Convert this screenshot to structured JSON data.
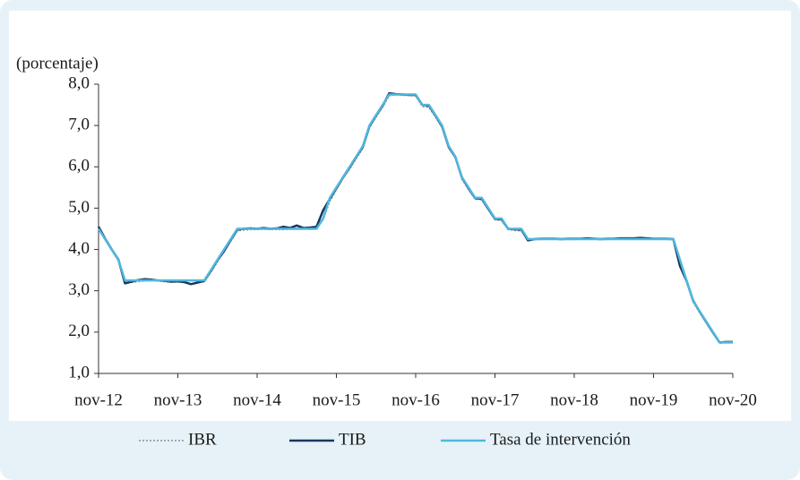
{
  "chart_data": {
    "type": "line",
    "ylabel": "(porcentaje)",
    "categories": [
      "nov-12",
      null,
      null,
      null,
      null,
      null,
      null,
      null,
      null,
      null,
      null,
      null,
      "nov-13",
      null,
      null,
      null,
      null,
      null,
      null,
      null,
      null,
      null,
      null,
      null,
      "nov-14",
      null,
      null,
      null,
      null,
      null,
      null,
      null,
      null,
      null,
      null,
      null,
      "nov-15",
      null,
      null,
      null,
      null,
      null,
      null,
      null,
      null,
      null,
      null,
      null,
      "nov-16",
      null,
      null,
      null,
      null,
      null,
      null,
      null,
      null,
      null,
      null,
      null,
      "nov-17",
      null,
      null,
      null,
      null,
      null,
      null,
      null,
      null,
      null,
      null,
      null,
      "nov-18",
      null,
      null,
      null,
      null,
      null,
      null,
      null,
      null,
      null,
      null,
      null,
      "nov-19",
      null,
      null,
      null,
      null,
      null,
      null,
      null,
      null,
      null,
      null,
      null,
      "nov-20"
    ],
    "series": [
      {
        "name": "IBR",
        "color": "#8a8f94",
        "dash": "2 2",
        "width": 1.5,
        "values": [
          4.52,
          4.23,
          3.98,
          3.72,
          3.18,
          3.2,
          3.22,
          3.24,
          3.25,
          3.24,
          3.22,
          3.21,
          3.21,
          3.2,
          3.17,
          3.19,
          3.22,
          3.45,
          3.7,
          3.95,
          4.2,
          4.45,
          4.47,
          4.48,
          4.48,
          4.49,
          4.48,
          4.48,
          4.48,
          4.49,
          4.49,
          4.5,
          4.51,
          4.52,
          4.72,
          5.16,
          5.45,
          5.72,
          5.95,
          6.2,
          6.45,
          6.95,
          7.2,
          7.45,
          7.72,
          7.74,
          7.73,
          7.73,
          7.72,
          7.46,
          7.44,
          7.2,
          6.95,
          6.45,
          6.22,
          5.7,
          5.45,
          5.22,
          5.2,
          4.96,
          4.72,
          4.7,
          4.48,
          4.46,
          4.45,
          4.22,
          4.24,
          4.24,
          4.25,
          4.25,
          4.24,
          4.24,
          4.24,
          4.25,
          4.25,
          4.25,
          4.24,
          4.24,
          4.25,
          4.25,
          4.25,
          4.26,
          4.26,
          4.25,
          4.25,
          4.25,
          4.24,
          4.24,
          3.7,
          3.22,
          2.72,
          2.47,
          2.22,
          1.98,
          1.73,
          1.74,
          1.74
        ]
      },
      {
        "name": "TIB",
        "color": "#17375e",
        "width": 2.5,
        "values": [
          4.55,
          4.26,
          4.0,
          3.76,
          3.18,
          3.22,
          3.26,
          3.28,
          3.27,
          3.25,
          3.24,
          3.22,
          3.23,
          3.21,
          3.16,
          3.2,
          3.24,
          3.48,
          3.74,
          3.96,
          4.23,
          4.48,
          4.5,
          4.51,
          4.5,
          4.52,
          4.5,
          4.51,
          4.55,
          4.52,
          4.58,
          4.52,
          4.53,
          4.55,
          4.95,
          5.22,
          5.48,
          5.74,
          5.98,
          6.24,
          6.48,
          6.98,
          7.24,
          7.48,
          7.78,
          7.76,
          7.75,
          7.74,
          7.74,
          7.5,
          7.48,
          7.24,
          6.98,
          6.48,
          6.24,
          5.74,
          5.48,
          5.24,
          5.23,
          4.98,
          4.74,
          4.73,
          4.5,
          4.49,
          4.48,
          4.22,
          4.25,
          4.26,
          4.26,
          4.26,
          4.25,
          4.26,
          4.26,
          4.26,
          4.27,
          4.26,
          4.25,
          4.26,
          4.26,
          4.27,
          4.27,
          4.27,
          4.28,
          4.27,
          4.26,
          4.26,
          4.26,
          4.25,
          3.6,
          3.24,
          2.76,
          2.49,
          2.24,
          1.99,
          1.75,
          1.76,
          1.76
        ]
      },
      {
        "name": "Tasa de intervención",
        "color": "#4fb7df",
        "width": 2.5,
        "values": [
          4.5,
          4.25,
          4.0,
          3.75,
          3.25,
          3.25,
          3.25,
          3.25,
          3.25,
          3.25,
          3.25,
          3.25,
          3.25,
          3.25,
          3.25,
          3.25,
          3.25,
          3.5,
          3.75,
          4.0,
          4.25,
          4.5,
          4.5,
          4.5,
          4.5,
          4.5,
          4.5,
          4.5,
          4.5,
          4.5,
          4.5,
          4.5,
          4.5,
          4.5,
          4.75,
          5.25,
          5.5,
          5.75,
          6.0,
          6.25,
          6.5,
          7.0,
          7.25,
          7.5,
          7.75,
          7.75,
          7.75,
          7.75,
          7.75,
          7.5,
          7.5,
          7.25,
          7.0,
          6.5,
          6.25,
          5.75,
          5.5,
          5.25,
          5.25,
          5.0,
          4.75,
          4.75,
          4.5,
          4.5,
          4.5,
          4.25,
          4.25,
          4.25,
          4.25,
          4.25,
          4.25,
          4.25,
          4.25,
          4.25,
          4.25,
          4.25,
          4.25,
          4.25,
          4.25,
          4.25,
          4.25,
          4.25,
          4.25,
          4.25,
          4.25,
          4.25,
          4.25,
          4.25,
          3.75,
          3.25,
          2.75,
          2.5,
          2.25,
          2.0,
          1.75,
          1.75,
          1.75
        ]
      }
    ],
    "ylim": [
      1,
      8
    ],
    "yticks": [
      {
        "value": 1,
        "label": "1,0"
      },
      {
        "value": 2,
        "label": "2,0"
      },
      {
        "value": 3,
        "label": "3,0"
      },
      {
        "value": 4,
        "label": "4,0"
      },
      {
        "value": 5,
        "label": "5,0"
      },
      {
        "value": 6,
        "label": "6,0"
      },
      {
        "value": 7,
        "label": "7,0"
      },
      {
        "value": 8,
        "label": "8,0"
      }
    ],
    "grid": false
  }
}
